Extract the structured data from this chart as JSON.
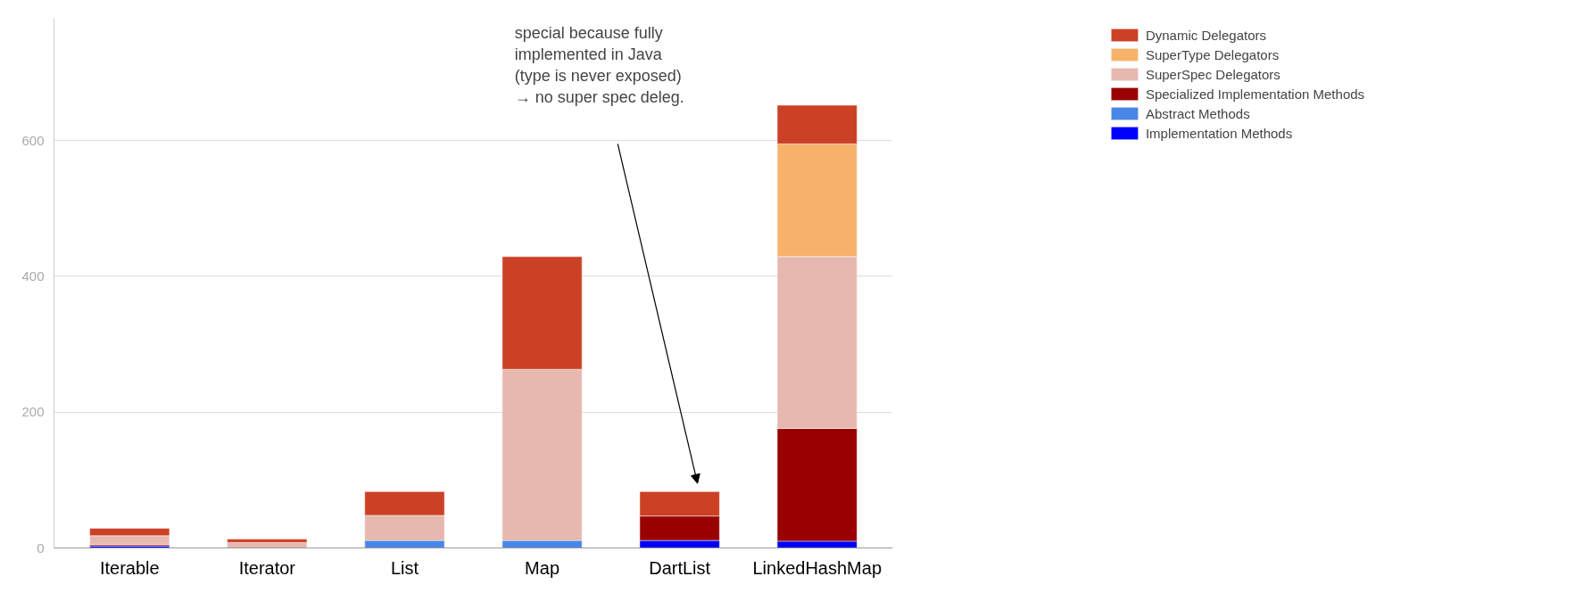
{
  "chart_data": {
    "type": "bar",
    "stacked": true,
    "categories": [
      "Iterable",
      "Iterator",
      "List",
      "Map",
      "DartList",
      "LinkedHashMap"
    ],
    "series": [
      {
        "name": "Implementation Methods",
        "color": "#0000ff",
        "values": [
          3,
          null,
          null,
          null,
          11,
          10
        ]
      },
      {
        "name": "Abstract Methods",
        "color": "#4a86e8",
        "values": [
          null,
          null,
          11,
          11,
          null,
          null
        ]
      },
      {
        "name": "Specialized Implementation Methods",
        "color": "#990000",
        "values": [
          2,
          null,
          null,
          null,
          36,
          166
        ]
      },
      {
        "name": "SuperSpec Delegators",
        "color": "#e6b8af",
        "values": [
          13,
          8,
          37,
          252,
          null,
          253
        ]
      },
      {
        "name": "SuperType Delegators",
        "color": "#f6b26b",
        "values": [
          null,
          null,
          null,
          null,
          null,
          166
        ]
      },
      {
        "name": "Dynamic Delegators",
        "color": "#cc4125",
        "values": [
          11,
          5,
          35,
          166,
          36,
          57
        ]
      }
    ],
    "ylim": [
      0,
      780
    ],
    "yticks": [
      0,
      200,
      400,
      600
    ],
    "grid": "y",
    "legend": "right",
    "annotations": [
      "special because fully\nimplemented in Java\n(type is never exposed)\n→ no super spec deleg."
    ]
  }
}
